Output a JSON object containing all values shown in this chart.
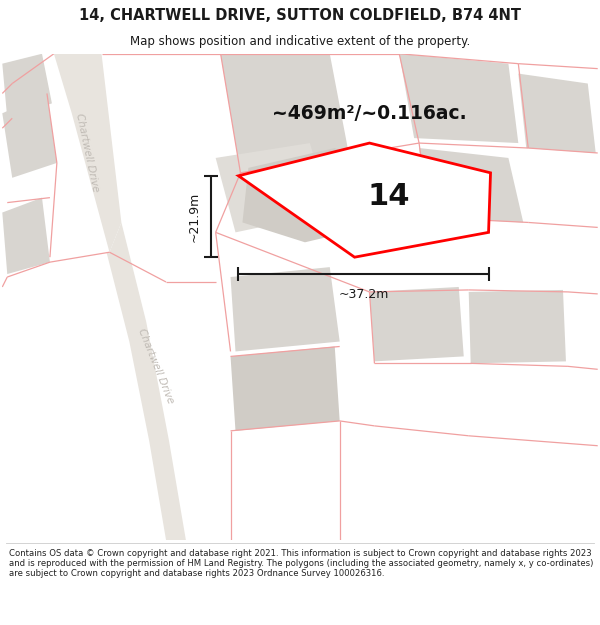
{
  "title": "14, CHARTWELL DRIVE, SUTTON COLDFIELD, B74 4NT",
  "subtitle": "Map shows position and indicative extent of the property.",
  "footer": "Contains OS data © Crown copyright and database right 2021. This information is subject to Crown copyright and database rights 2023 and is reproduced with the permission of HM Land Registry. The polygons (including the associated geometry, namely x, y co-ordinates) are subject to Crown copyright and database rights 2023 Ordnance Survey 100026316.",
  "area_label": "~469m²/~0.116ac.",
  "number_label": "14",
  "dim_width": "~37.2m",
  "dim_height": "~21.9m",
  "road_label_upper": "Chartwell Drive",
  "road_label_lower": "Chartwell Drive",
  "map_bg": "#f8f6f3",
  "road_fill": "#e8e4de",
  "boundary_color": "#ff0000",
  "parcel_line_color": "#f0a0a0",
  "gray_block": "#d8d5d0",
  "dim_color": "#1a1a1a",
  "title_color": "#1a1a1a",
  "road_text_color": "#c0bbb5"
}
